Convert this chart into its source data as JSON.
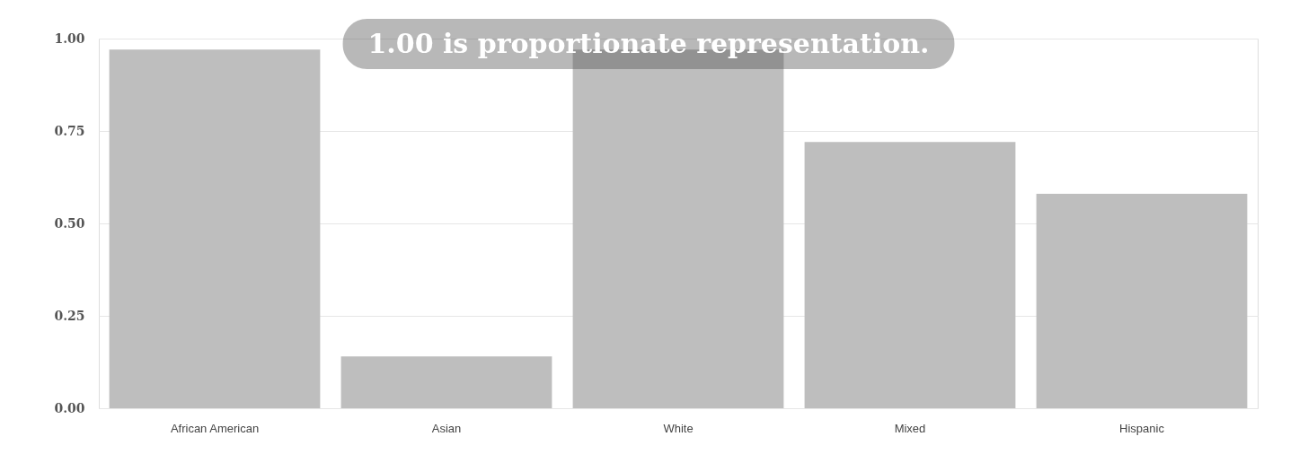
{
  "chart_data": {
    "type": "bar",
    "categories": [
      "African American",
      "Asian",
      "White",
      "Mixed",
      "Hispanic"
    ],
    "values": [
      0.97,
      0.14,
      0.97,
      0.72,
      0.58
    ],
    "color": "#bebebe",
    "ylim": [
      0,
      1
    ],
    "yticks": [
      {
        "value": 0,
        "label": "0.00"
      },
      {
        "value": 0.25,
        "label": "0.25"
      },
      {
        "value": 0.5,
        "label": "0.50"
      },
      {
        "value": 0.75,
        "label": "0.75"
      },
      {
        "value": 1,
        "label": "1.00"
      }
    ],
    "grid": "y",
    "annotations": [
      "1.00 is proportionate representation."
    ]
  }
}
